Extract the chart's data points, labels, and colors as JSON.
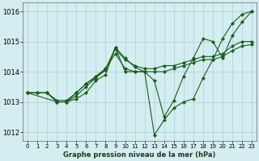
{
  "title": "Graphe pression niveau de la mer (hPa)",
  "bg_color": "#d4edf0",
  "grid_color": "#a8d0d8",
  "line_color": "#1a5c1a",
  "xlim_min": -0.5,
  "xlim_max": 23.5,
  "ylim_min": 1011.7,
  "ylim_max": 1016.3,
  "yticks": [
    1012,
    1013,
    1014,
    1015,
    1016
  ],
  "xticks": [
    0,
    1,
    2,
    3,
    4,
    5,
    6,
    7,
    8,
    9,
    10,
    11,
    12,
    13,
    14,
    15,
    16,
    17,
    18,
    19,
    20,
    21,
    22,
    23
  ],
  "series": [
    {
      "x": [
        0,
        1,
        2,
        3,
        4,
        5,
        6,
        7,
        8,
        9,
        10,
        11,
        12,
        13,
        14,
        15,
        16,
        17,
        18,
        19,
        20,
        21,
        22,
        23
      ],
      "y": [
        1013.3,
        1013.3,
        1013.3,
        1013.0,
        1013.0,
        1013.1,
        1013.3,
        1013.7,
        1013.9,
        1014.8,
        1014.0,
        1014.0,
        1014.0,
        1011.9,
        1012.4,
        1012.8,
        1013.0,
        1013.1,
        1013.8,
        1014.4,
        1015.1,
        1015.6,
        1015.9,
        1016.0
      ]
    },
    {
      "x": [
        0,
        1,
        2,
        3,
        4,
        5,
        6,
        7,
        8,
        9,
        10,
        11,
        12,
        13,
        14,
        15,
        16,
        17,
        18,
        19,
        20,
        21,
        22,
        23
      ],
      "y": [
        1013.3,
        1013.3,
        1013.3,
        1013.05,
        1013.05,
        1013.3,
        1013.6,
        1013.85,
        1014.1,
        1014.75,
        1014.4,
        1014.2,
        1014.1,
        1014.1,
        1014.2,
        1014.2,
        1014.3,
        1014.4,
        1014.5,
        1014.5,
        1014.6,
        1014.85,
        1015.0,
        1015.0
      ]
    },
    {
      "x": [
        0,
        1,
        2,
        3,
        4,
        5,
        6,
        7,
        8,
        9,
        10,
        11,
        12,
        13,
        14,
        15,
        16,
        17,
        18,
        19,
        20,
        21,
        22,
        23
      ],
      "y": [
        1013.3,
        1013.3,
        1013.3,
        1013.0,
        1013.0,
        1013.2,
        1013.5,
        1013.8,
        1014.1,
        1014.6,
        1014.1,
        1014.0,
        1014.0,
        1014.0,
        1014.0,
        1014.1,
        1014.2,
        1014.3,
        1014.4,
        1014.4,
        1014.5,
        1014.7,
        1014.85,
        1014.9
      ]
    },
    {
      "x": [
        0,
        3,
        4,
        5,
        6,
        7,
        8,
        9,
        10,
        11,
        12,
        13,
        14,
        15,
        16,
        17,
        18,
        19,
        20,
        21,
        22,
        23
      ],
      "y": [
        1013.3,
        1013.0,
        1013.0,
        1013.3,
        1013.6,
        1013.8,
        1014.05,
        1014.8,
        1014.45,
        1014.15,
        1014.0,
        1013.7,
        1012.5,
        1013.05,
        1013.85,
        1014.45,
        1015.1,
        1015.0,
        1014.45,
        1015.2,
        1015.65,
        1016.0
      ]
    }
  ]
}
